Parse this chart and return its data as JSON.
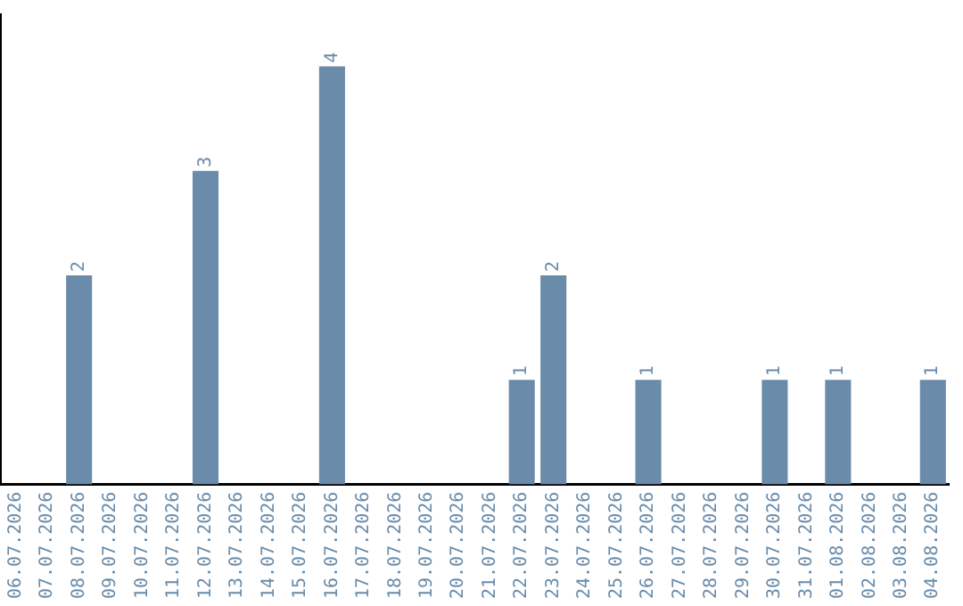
{
  "chart_data": {
    "type": "bar",
    "categories": [
      "06.07.2026",
      "07.07.2026",
      "08.07.2026",
      "09.07.2026",
      "10.07.2026",
      "11.07.2026",
      "12.07.2026",
      "13.07.2026",
      "14.07.2026",
      "15.07.2026",
      "16.07.2026",
      "17.07.2026",
      "18.07.2026",
      "19.07.2026",
      "20.07.2026",
      "21.07.2026",
      "22.07.2026",
      "23.07.2026",
      "24.07.2026",
      "25.07.2026",
      "26.07.2026",
      "27.07.2026",
      "28.07.2026",
      "29.07.2026",
      "30.07.2026",
      "31.07.2026",
      "01.08.2026",
      "02.08.2026",
      "03.08.2026",
      "04.08.2026"
    ],
    "values": [
      0,
      0,
      2,
      0,
      0,
      0,
      3,
      0,
      0,
      0,
      4,
      0,
      0,
      0,
      0,
      0,
      1,
      2,
      0,
      0,
      1,
      0,
      0,
      0,
      1,
      0,
      1,
      0,
      0,
      1
    ],
    "value_labels": [
      null,
      null,
      "2",
      null,
      null,
      null,
      "3",
      null,
      null,
      null,
      "4",
      null,
      null,
      null,
      null,
      null,
      "1",
      "2",
      null,
      null,
      "1",
      null,
      null,
      null,
      "1",
      null,
      "1",
      null,
      null,
      "1"
    ],
    "color": "#6a8caa",
    "grid": false,
    "legend": false,
    "tick_labels": "x"
  }
}
